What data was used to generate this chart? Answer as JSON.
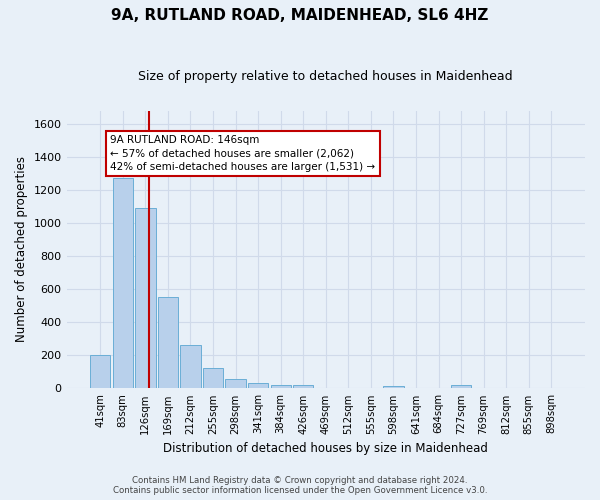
{
  "title1": "9A, RUTLAND ROAD, MAIDENHEAD, SL6 4HZ",
  "title2": "Size of property relative to detached houses in Maidenhead",
  "xlabel": "Distribution of detached houses by size in Maidenhead",
  "ylabel": "Number of detached properties",
  "footnote1": "Contains HM Land Registry data © Crown copyright and database right 2024.",
  "footnote2": "Contains public sector information licensed under the Open Government Licence v3.0.",
  "bar_labels": [
    "41sqm",
    "83sqm",
    "126sqm",
    "169sqm",
    "212sqm",
    "255sqm",
    "298sqm",
    "341sqm",
    "384sqm",
    "426sqm",
    "469sqm",
    "512sqm",
    "555sqm",
    "598sqm",
    "641sqm",
    "684sqm",
    "727sqm",
    "769sqm",
    "812sqm",
    "855sqm",
    "898sqm"
  ],
  "bar_values": [
    200,
    1270,
    1090,
    555,
    265,
    125,
    60,
    30,
    20,
    20,
    0,
    0,
    0,
    15,
    0,
    0,
    18,
    0,
    0,
    0,
    0
  ],
  "bar_color": "#b8d0eb",
  "bar_edge_color": "#6aaed6",
  "background_color": "#e8f0f8",
  "grid_color": "#d0daea",
  "vline_x": 2.18,
  "vline_color": "#c00000",
  "annotation_text": "9A RUTLAND ROAD: 146sqm\n← 57% of detached houses are smaller (2,062)\n42% of semi-detached houses are larger (1,531) →",
  "annotation_box_color": "#ffffff",
  "annotation_box_edge": "#c00000",
  "ylim": [
    0,
    1680
  ],
  "yticks": [
    0,
    200,
    400,
    600,
    800,
    1000,
    1200,
    1400,
    1600
  ]
}
